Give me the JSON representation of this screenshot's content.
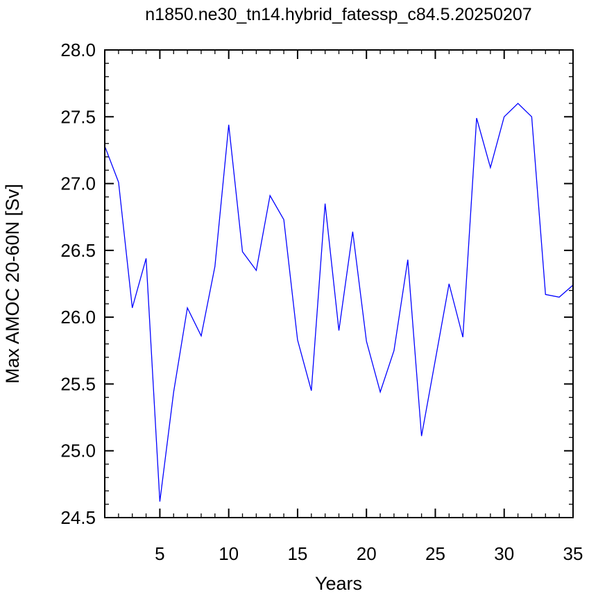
{
  "chart_data": {
    "type": "line",
    "title": "n1850.ne30_tn14.hybrid_fatessp_c84.5.20250207",
    "xlabel": "Years",
    "ylabel": "Max AMOC 20-60N [Sv]",
    "xlim": [
      1,
      35
    ],
    "ylim": [
      24.5,
      28.0
    ],
    "xticks": [
      5,
      10,
      15,
      20,
      25,
      30,
      35
    ],
    "xtick_labels": [
      "5",
      "10",
      "15",
      "20",
      "25",
      "30",
      "35"
    ],
    "yticks": [
      24.5,
      25.0,
      25.5,
      26.0,
      26.5,
      27.0,
      27.5,
      28.0
    ],
    "ytick_labels": [
      "24.5",
      "25.0",
      "25.5",
      "26.0",
      "26.5",
      "27.0",
      "27.5",
      "28.0"
    ],
    "grid": false,
    "line_color": "#0000ff",
    "series": [
      {
        "x": [
          1,
          2,
          3,
          4,
          5,
          6,
          7,
          8,
          9,
          10,
          11,
          12,
          13,
          14,
          15,
          16,
          17,
          18,
          19,
          20,
          21,
          22,
          23,
          24,
          25,
          26,
          27,
          28,
          29,
          30,
          31,
          32,
          33,
          34,
          35
        ],
        "values": [
          27.28,
          27.01,
          26.07,
          26.44,
          24.62,
          25.44,
          26.07,
          25.86,
          26.38,
          27.44,
          26.49,
          26.35,
          26.91,
          26.73,
          25.83,
          25.45,
          26.85,
          25.9,
          26.64,
          25.82,
          25.44,
          25.75,
          26.43,
          25.11,
          25.68,
          26.25,
          25.85,
          27.49,
          27.12,
          27.5,
          27.6,
          27.5,
          26.17,
          26.15,
          26.24
        ]
      }
    ]
  }
}
